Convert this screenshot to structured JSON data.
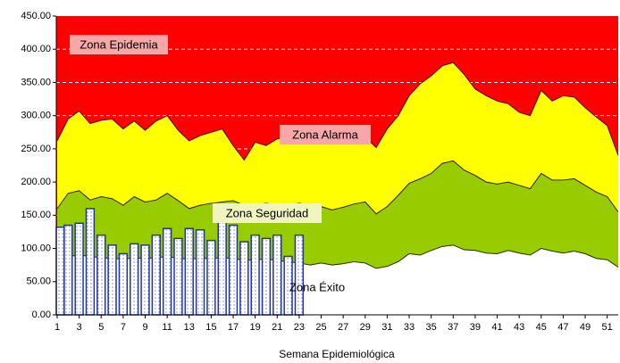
{
  "chart_data": {
    "type": "channel",
    "x_label": "Semana Epidemiológica",
    "x": [
      1,
      2,
      3,
      4,
      5,
      6,
      7,
      8,
      9,
      10,
      11,
      12,
      13,
      14,
      15,
      16,
      17,
      18,
      19,
      20,
      21,
      22,
      23,
      24,
      25,
      26,
      27,
      28,
      29,
      30,
      31,
      32,
      33,
      34,
      35,
      36,
      37,
      38,
      39,
      40,
      41,
      42,
      43,
      44,
      45,
      46,
      47,
      48,
      49,
      50,
      51,
      52
    ],
    "xlim": [
      1,
      52
    ],
    "xticks": [
      1,
      3,
      5,
      7,
      9,
      11,
      13,
      15,
      17,
      19,
      21,
      23,
      25,
      27,
      29,
      31,
      33,
      35,
      37,
      39,
      41,
      43,
      45,
      47,
      49,
      51
    ],
    "ylim": [
      0,
      450
    ],
    "yticks": [
      {
        "value": 0,
        "label": "0.00"
      },
      {
        "value": 50,
        "label": "50.00"
      },
      {
        "value": 100,
        "label": "100.00"
      },
      {
        "value": 150,
        "label": "150.00"
      },
      {
        "value": 200,
        "label": "200.00"
      },
      {
        "value": 250,
        "label": "250.00"
      },
      {
        "value": 300,
        "label": "300.00"
      },
      {
        "value": 350,
        "label": "350.00"
      },
      {
        "value": 400,
        "label": "400.00"
      },
      {
        "value": 450,
        "label": "450.00"
      }
    ],
    "grid": true,
    "background_zone": {
      "name": "Zona Epidemia",
      "color": "#ff0000"
    },
    "series": [
      {
        "name": "Zona Alarma",
        "color": "#ffff00",
        "values": [
          262,
          295,
          307,
          288,
          293,
          295,
          280,
          292,
          278,
          292,
          300,
          278,
          262,
          270,
          275,
          280,
          255,
          233,
          260,
          255,
          265,
          268,
          268,
          262,
          258,
          257,
          262,
          270,
          268,
          252,
          280,
          300,
          330,
          348,
          360,
          375,
          380,
          362,
          340,
          330,
          322,
          318,
          305,
          300,
          338,
          322,
          330,
          328,
          312,
          298,
          285,
          240
        ]
      },
      {
        "name": "Zona Seguridad",
        "color": "#99cc00",
        "values": [
          160,
          183,
          187,
          173,
          178,
          175,
          165,
          178,
          170,
          173,
          183,
          172,
          160,
          165,
          168,
          170,
          172,
          165,
          165,
          168,
          165,
          165,
          168,
          165,
          163,
          158,
          162,
          167,
          170,
          152,
          163,
          180,
          198,
          205,
          213,
          228,
          232,
          218,
          210,
          200,
          197,
          200,
          195,
          190,
          213,
          203,
          203,
          205,
          195,
          185,
          178,
          155
        ]
      },
      {
        "name": "Zona Éxito",
        "color": "#ffffff",
        "values": [
          85,
          88,
          90,
          88,
          86,
          85,
          84,
          86,
          85,
          86,
          88,
          85,
          84,
          85,
          85,
          86,
          85,
          82,
          83,
          84,
          82,
          80,
          78,
          75,
          78,
          75,
          77,
          80,
          78,
          70,
          73,
          80,
          92,
          90,
          97,
          103,
          105,
          98,
          97,
          93,
          92,
          97,
          93,
          90,
          100,
          96,
          93,
          96,
          92,
          85,
          83,
          72
        ]
      }
    ],
    "bars": {
      "color": "#2233aa",
      "values": [
        132,
        135,
        138,
        160,
        120,
        105,
        92,
        107,
        105,
        120,
        130,
        115,
        130,
        128,
        112,
        140,
        135,
        110,
        120,
        115,
        120,
        88,
        120
      ]
    }
  }
}
